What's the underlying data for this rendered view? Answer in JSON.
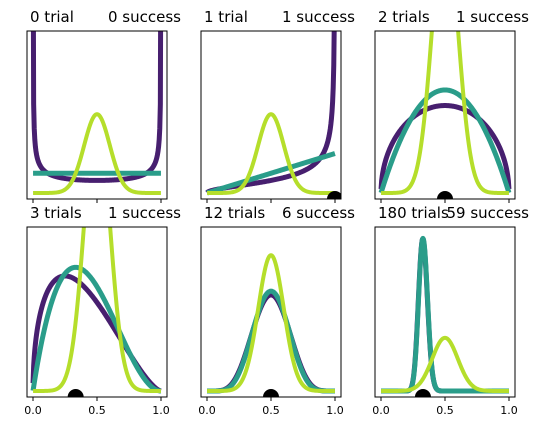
{
  "chart_data": {
    "type": "line",
    "xlim": [
      0,
      1
    ],
    "x_ticks": [
      "0.0",
      "0.5",
      "1.0"
    ],
    "grid": false,
    "legend": "none",
    "colors": {
      "prior_purple": "#471f6f",
      "prior_teal": "#2a9d8a",
      "likelihood_green": "#b5de2b",
      "estimate_marker": "#000000",
      "axis": "#000000",
      "background": "#ffffff"
    },
    "panels": [
      {
        "title_left": "0 trial",
        "title_right": "0 success",
        "trials": 0,
        "successes": 0
      },
      {
        "title_left": "1 trial",
        "title_right": "1 success",
        "trials": 1,
        "successes": 1
      },
      {
        "title_left": "2 trials",
        "title_right": "1 success",
        "trials": 2,
        "successes": 1
      },
      {
        "title_left": "3 trials",
        "title_right": "1 success",
        "trials": 3,
        "successes": 1
      },
      {
        "title_left": "12 trials",
        "title_right": "6 success",
        "trials": 12,
        "successes": 6
      },
      {
        "title_left": "180 trials",
        "title_right": "59 success",
        "trials": 180,
        "successes": 59
      }
    ]
  }
}
